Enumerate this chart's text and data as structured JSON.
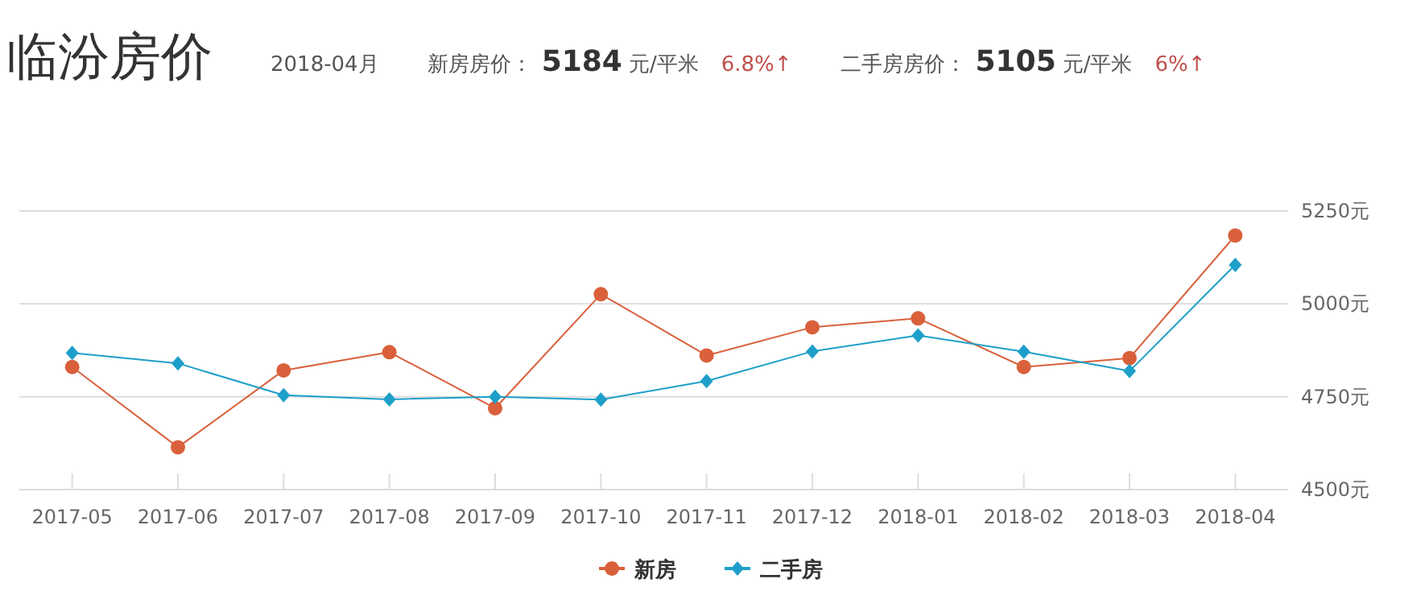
{
  "chart_data": {
    "type": "line",
    "title": "临汾房价",
    "annotations": [
      "2018-04月",
      "新房房价：",
      "5184",
      "元/平米",
      "6.8%↑",
      "二手房房价：",
      "5105",
      "元/平米",
      "6%↑"
    ],
    "categories": [
      "2017-05",
      "2017-06",
      "2017-07",
      "2017-08",
      "2017-09",
      "2017-10",
      "2017-11",
      "2017-12",
      "2018-01",
      "2018-02",
      "2018-03",
      "2018-04"
    ],
    "series": [
      {
        "name": "新房",
        "color": "#d9603b",
        "marker": "circle",
        "values": [
          4830,
          4614,
          4821,
          4870,
          4719,
          5026,
          4861,
          4937,
          4961,
          4830,
          4854,
          5184
        ]
      },
      {
        "name": "二手房",
        "color": "#1e9fc9",
        "marker": "diamond",
        "values": [
          4868,
          4840,
          4754,
          4743,
          4750,
          4742,
          4792,
          4872,
          4915,
          4871,
          4819,
          5105
        ]
      }
    ],
    "ylim": [
      4500,
      5250
    ],
    "yticks": [
      {
        "value": 4500,
        "label": "4500元"
      },
      {
        "value": 4750,
        "label": "4750元"
      },
      {
        "value": 5000,
        "label": "5000元"
      },
      {
        "value": 5250,
        "label": "5250元"
      }
    ],
    "grid": "y",
    "legend": "bottom",
    "line_style": "solid"
  }
}
